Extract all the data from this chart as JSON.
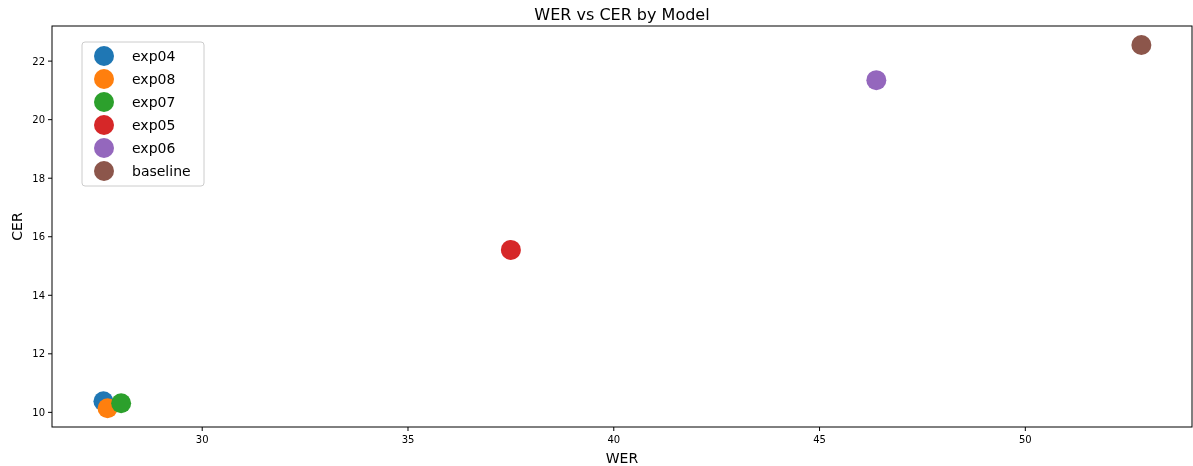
{
  "chart_data": {
    "type": "scatter",
    "title": "WER vs CER by Model",
    "xlabel": "WER",
    "ylabel": "CER",
    "xlim": [
      26.35,
      54.05
    ],
    "xticks": [
      30,
      35,
      40,
      45,
      50
    ],
    "ylim": [
      9.5,
      23.2
    ],
    "yticks": [
      10,
      12,
      14,
      16,
      18,
      20,
      22
    ],
    "legend": "top left",
    "marker": "circle",
    "series": [
      {
        "name": "exp04",
        "color": "#1f77b4",
        "x": [
          27.6
        ],
        "values": [
          10.38
        ]
      },
      {
        "name": "exp08",
        "color": "#ff7f0e",
        "x": [
          27.7
        ],
        "values": [
          10.14
        ]
      },
      {
        "name": "exp07",
        "color": "#2ca02c",
        "x": [
          28.03
        ],
        "values": [
          10.31
        ]
      },
      {
        "name": "exp05",
        "color": "#d62728",
        "x": [
          37.5
        ],
        "values": [
          15.55
        ]
      },
      {
        "name": "exp06",
        "color": "#9467bd",
        "x": [
          46.38
        ],
        "values": [
          21.35
        ]
      },
      {
        "name": "baseline",
        "color": "#8c564b",
        "x": [
          52.82
        ],
        "values": [
          22.55
        ]
      }
    ]
  }
}
